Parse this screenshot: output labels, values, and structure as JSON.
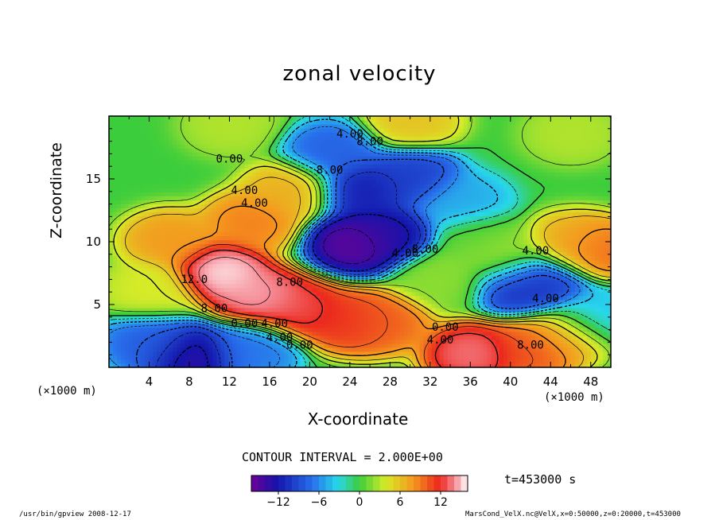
{
  "chart_data": {
    "type": "heatmap",
    "title": "zonal velocity",
    "xlabel": "X-coordinate",
    "ylabel": "Z-coordinate",
    "x_units": "(×1000 m)",
    "y_units": "(×1000 m)",
    "xlim": [
      0,
      50
    ],
    "ylim": [
      0,
      20
    ],
    "x_ticks": [
      4,
      8,
      12,
      16,
      20,
      24,
      28,
      32,
      36,
      40,
      44,
      48
    ],
    "y_ticks": [
      5,
      10,
      15
    ],
    "colorbar_ticks": [
      -12,
      -6,
      0,
      6,
      12
    ],
    "colorbar_range": [
      -16,
      16
    ],
    "contour_interval_label": "CONTOUR INTERVAL = 2.000E+00",
    "time_label": "t=453000 s",
    "contour_labels": [
      {
        "text": "4.00",
        "x": 24,
        "y": 18.3
      },
      {
        "text": "8.00",
        "x": 26,
        "y": 17.7
      },
      {
        "text": "0.00",
        "x": 12,
        "y": 16.3
      },
      {
        "text": "8.00",
        "x": 22,
        "y": 15.4
      },
      {
        "text": "4.00",
        "x": 13.5,
        "y": 13.8
      },
      {
        "text": "4.00",
        "x": 14.5,
        "y": 12.8
      },
      {
        "text": "4.00",
        "x": 29.5,
        "y": 8.8
      },
      {
        "text": "8.00",
        "x": 31.5,
        "y": 9.1
      },
      {
        "text": "4.00",
        "x": 42.5,
        "y": 9.0
      },
      {
        "text": "12.0",
        "x": 8.5,
        "y": 6.7
      },
      {
        "text": "8.00",
        "x": 18,
        "y": 6.5
      },
      {
        "text": "4.00",
        "x": 43.5,
        "y": 5.2
      },
      {
        "text": "8.00",
        "x": 10.5,
        "y": 4.4
      },
      {
        "text": "0.00",
        "x": 13.5,
        "y": 3.2
      },
      {
        "text": "4.00",
        "x": 16.5,
        "y": 3.2
      },
      {
        "text": "0.00",
        "x": 33.5,
        "y": 2.9
      },
      {
        "text": "4.00",
        "x": 33,
        "y": 1.9
      },
      {
        "text": "4.00",
        "x": 17,
        "y": 2.1
      },
      {
        "text": "0.00",
        "x": 19,
        "y": 1.5
      },
      {
        "text": "8.00",
        "x": 42,
        "y": 1.5
      }
    ],
    "features": [
      {
        "x": 11,
        "y": 7.5,
        "value": 16
      },
      {
        "x": 15,
        "y": 5.5,
        "value": 15
      },
      {
        "x": 19,
        "y": 4.5,
        "value": 13
      },
      {
        "x": 24,
        "y": 3.5,
        "value": 12
      },
      {
        "x": 27,
        "y": 3.4,
        "value": 10
      },
      {
        "x": 6,
        "y": 10,
        "value": 8
      },
      {
        "x": 4,
        "y": 6,
        "value": 4
      },
      {
        "x": 8,
        "y": 0.8,
        "value": -14
      },
      {
        "x": 4,
        "y": 1.8,
        "value": -8
      },
      {
        "x": 14,
        "y": 1.3,
        "value": -7
      },
      {
        "x": 24.5,
        "y": 9.8,
        "value": -16
      },
      {
        "x": 27.5,
        "y": 10.5,
        "value": -13
      },
      {
        "x": 25,
        "y": 14,
        "value": -12
      },
      {
        "x": 30,
        "y": 15,
        "value": -10
      },
      {
        "x": 22,
        "y": 17,
        "value": -8
      },
      {
        "x": 35,
        "y": 13,
        "value": -5
      },
      {
        "x": 41,
        "y": 6.5,
        "value": -11
      },
      {
        "x": 43,
        "y": 6.5,
        "value": -10
      },
      {
        "x": 39.5,
        "y": 8.5,
        "value": 3
      },
      {
        "x": 48.5,
        "y": 9.3,
        "value": 10
      },
      {
        "x": 46,
        "y": 9.8,
        "value": 7
      },
      {
        "x": 36,
        "y": 1,
        "value": 14
      },
      {
        "x": 42,
        "y": 1.4,
        "value": 11
      },
      {
        "x": 45,
        "y": 2.5,
        "value": 7
      },
      {
        "x": 30,
        "y": 19.6,
        "value": 6
      },
      {
        "x": 12,
        "y": 19.2,
        "value": 3
      },
      {
        "x": 46,
        "y": 18.5,
        "value": 3
      },
      {
        "x": 18,
        "y": 14,
        "value": 7
      },
      {
        "x": 14,
        "y": 11.5,
        "value": 9
      },
      {
        "x": 37,
        "y": 10,
        "value": 1
      },
      {
        "x": 48,
        "y": 4,
        "value": -4
      },
      {
        "x": 33,
        "y": 7,
        "value": 2
      }
    ]
  },
  "footer": {
    "left": "/usr/bin/gpview   2008-12-17",
    "right": "MarsCond_VelX.nc@VelX,x=0:50000,z=0:20000,t=453000"
  }
}
